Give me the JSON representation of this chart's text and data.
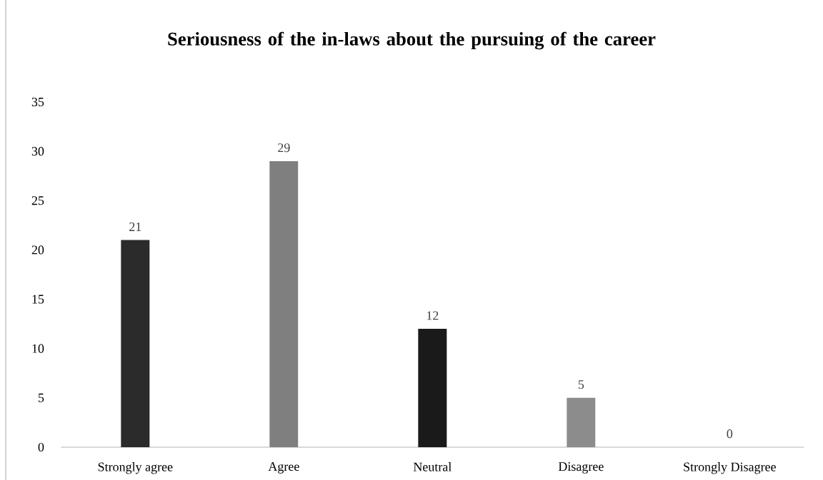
{
  "chart_data": {
    "type": "bar",
    "title": "Seriousness of the in-laws about the pursuing of the career",
    "categories": [
      "Strongly agree",
      "Agree",
      "Neutral",
      "Disagree",
      "Strongly Disagree"
    ],
    "values": [
      21,
      29,
      12,
      5,
      0
    ],
    "colors": [
      "#2b2b2b",
      "#7f7f7f",
      "#1a1a1a",
      "#8c8c8c",
      "#595959"
    ],
    "data_labels": true,
    "ylim": [
      0,
      35
    ],
    "yticks": [
      0,
      5,
      10,
      15,
      20,
      25,
      30,
      35
    ]
  }
}
